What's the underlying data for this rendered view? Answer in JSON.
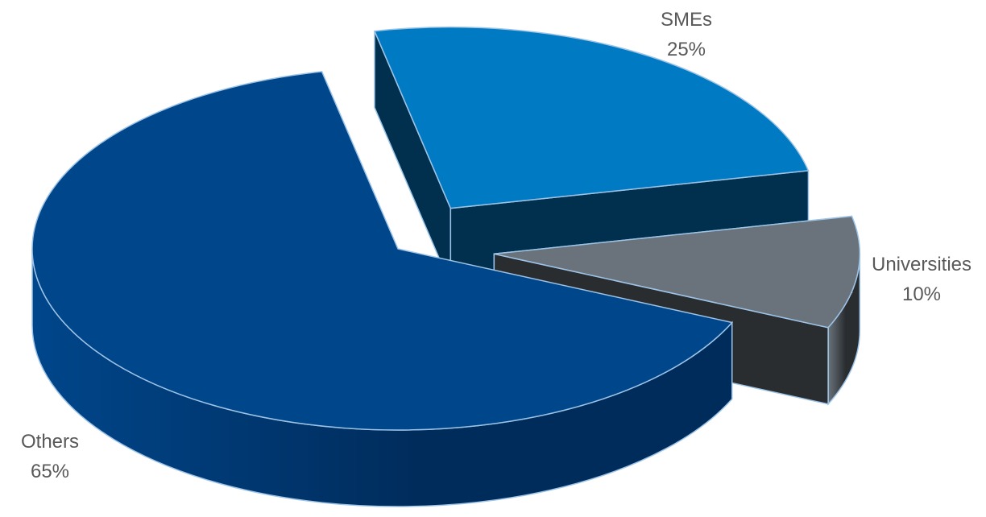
{
  "chart_data": {
    "type": "pie",
    "variant": "3d-exploded",
    "title": "",
    "slices": [
      {
        "label": "SMEs",
        "value": 25,
        "value_label": "25%",
        "color": "#007AC2",
        "exploded": true
      },
      {
        "label": "Universities",
        "value": 10,
        "value_label": "10%",
        "color": "#6A737B",
        "exploded": true
      },
      {
        "label": "Others",
        "value": 65,
        "value_label": "65%",
        "color": "#00468B",
        "exploded": false
      }
    ],
    "side_colors": {
      "SMEs": "#00304D",
      "Universities": "#2A2D30",
      "Others": "#002C5C"
    },
    "edge_color": "#9DC3E6",
    "legend": "none",
    "label_color": "#595959"
  }
}
